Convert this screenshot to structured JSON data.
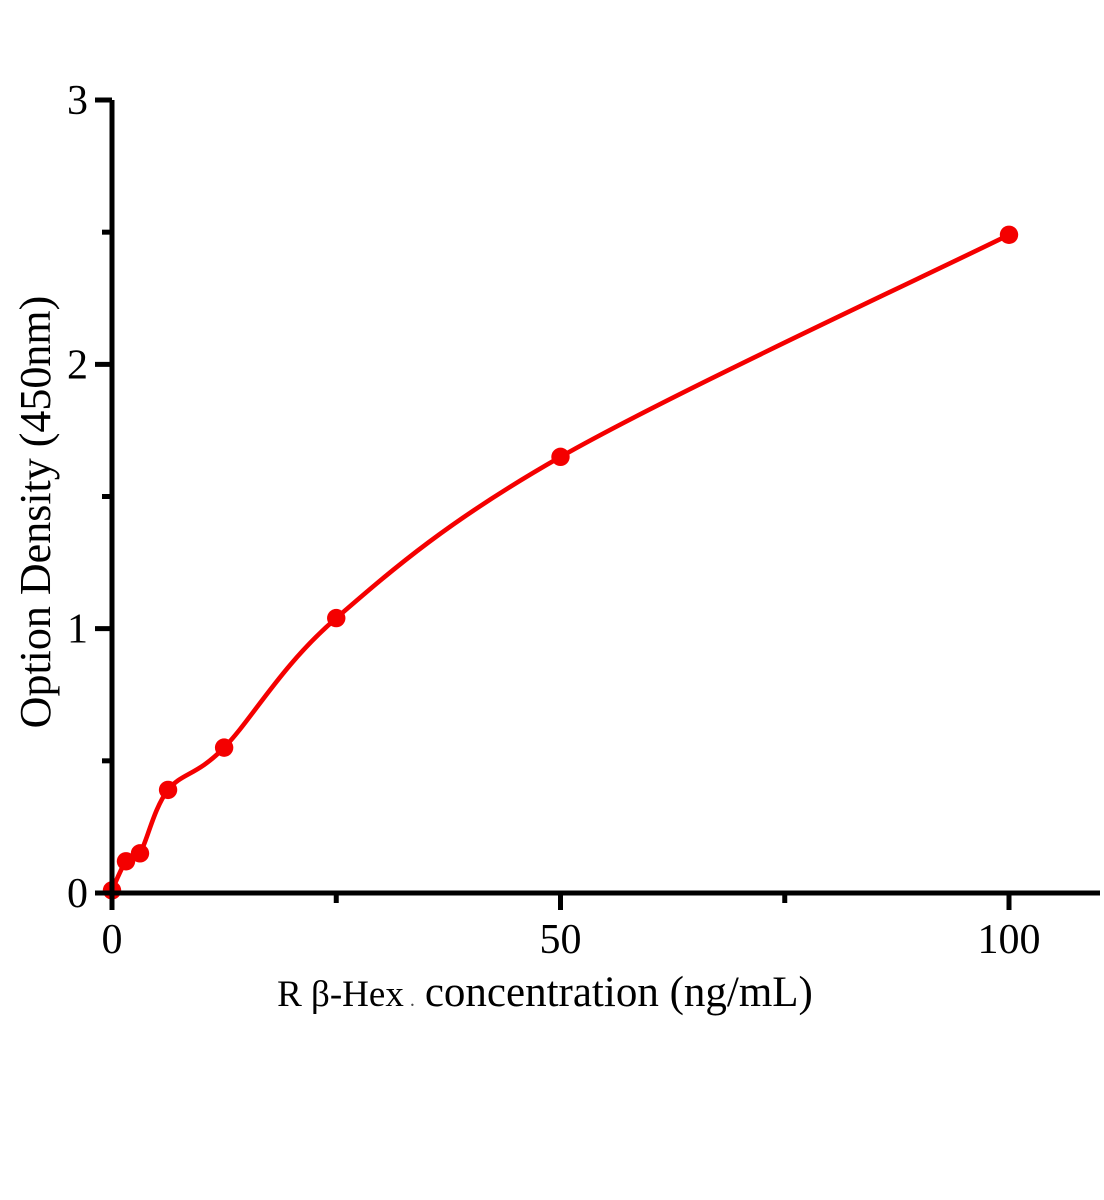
{
  "chart_data": {
    "type": "scatter",
    "title": "",
    "ylabel": "Option Density（450nm）",
    "xlabel": "R β-Hex concentration（ng/mL）",
    "xlabel_parts": {
      "prefix": "R β-Hex",
      "dot": ".",
      "main": "concentration（ng/mL）"
    },
    "x": [
      0,
      1.56,
      3.12,
      6.25,
      12.5,
      25,
      50,
      100
    ],
    "y": [
      0.01,
      0.12,
      0.15,
      0.39,
      0.55,
      1.04,
      1.65,
      2.49
    ],
    "xlim": [
      0,
      110
    ],
    "ylim": [
      0,
      3
    ],
    "x_major_ticks": {
      "values": [
        0,
        50,
        100
      ],
      "labels": [
        "0",
        "50",
        "100"
      ]
    },
    "x_minor_ticks": [
      25,
      75
    ],
    "y_major_ticks": {
      "values": [
        0,
        1,
        2,
        3
      ],
      "labels": [
        "0",
        "1",
        "2",
        "3"
      ]
    },
    "y_minor_ticks": [
      0.5,
      1.5,
      2.5
    ],
    "marker": "circle",
    "line_style": "smooth",
    "grid": false,
    "legend": "none",
    "colors": {
      "series": "#f40000",
      "axis": "#000000",
      "background": "#ffffff"
    }
  }
}
